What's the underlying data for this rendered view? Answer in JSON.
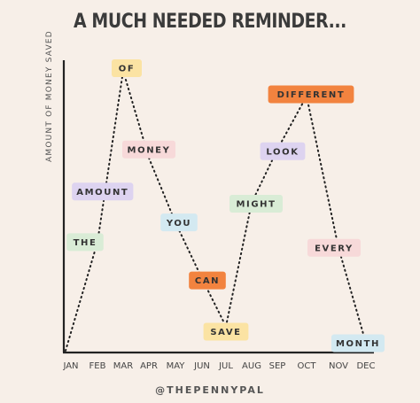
{
  "footer": "@THEPENNYPAL",
  "chart_data": {
    "type": "line",
    "title": "A MUCH NEEDED REMINDER...",
    "xlabel": "",
    "ylabel": "AMOUNT OF MONEY SAVED",
    "categories": [
      "JAN",
      "FEB",
      "MAR",
      "APR",
      "MAY",
      "JUN",
      "JUL",
      "AUG",
      "SEP",
      "OCT",
      "NOV",
      "DEC"
    ],
    "series": [
      {
        "values": [
          0,
          39,
          100,
          69,
          46,
          26,
          9,
          53,
          72,
          91,
          37,
          3
        ],
        "labels": [
          "",
          "THE",
          "OF",
          "",
          "YOU",
          "CAN",
          "SAVE",
          "MIGHT",
          "LOOK",
          "DIFFERENT",
          "EVERY",
          "MONTH"
        ]
      }
    ],
    "extra_labels": [
      {
        "text": "AMOUNT",
        "x": 1.2,
        "y": 57,
        "color": "#ddd3f0"
      },
      {
        "text": "MONEY",
        "x": 3.0,
        "y": 72,
        "color": "#f7d9d9"
      }
    ],
    "ylim": [
      0,
      100
    ],
    "grid": false,
    "line_style": "dotted",
    "label_colors": {
      "THE": "#d9ecd6",
      "OF": "#fbe3a3",
      "YOU": "#d3e9f1",
      "CAN": "#f2833f",
      "SAVE": "#fbe3a3",
      "MIGHT": "#d9ecd6",
      "LOOK": "#ddd3f0",
      "DIFFERENT": "#f2833f",
      "EVERY": "#f7d9d9",
      "MONTH": "#d3e9f1"
    }
  }
}
